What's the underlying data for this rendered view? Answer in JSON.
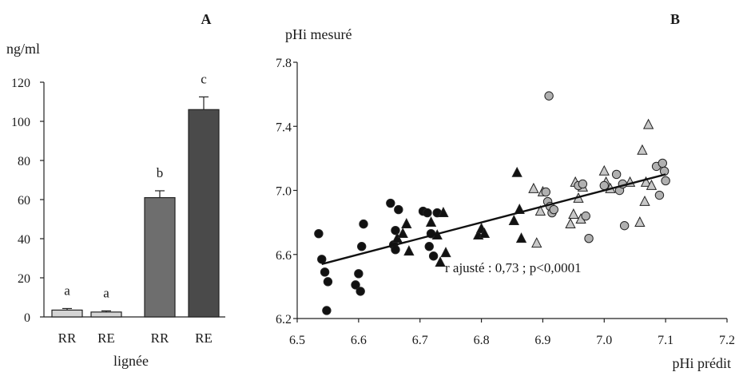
{
  "chart_data": [
    {
      "panel_label": "A",
      "type": "bar",
      "ylabel": "ng/ml",
      "xlabel": "lignée",
      "ylim": [
        0,
        120
      ],
      "yticks": [
        "0",
        "20",
        "40",
        "60",
        "80",
        "100",
        "120"
      ],
      "categories": [
        "RR",
        "RE",
        "RR",
        "RE"
      ],
      "values": [
        3.5,
        2.5,
        61,
        106
      ],
      "errors": [
        0.8,
        0.6,
        3.5,
        6.5
      ],
      "significance": [
        "a",
        "a",
        "b",
        "c"
      ],
      "bar_colors": [
        "#d4d4d4",
        "#d4d4d4",
        "#6e6e6e",
        "#4a4a4a"
      ]
    },
    {
      "panel_label": "B",
      "type": "scatter",
      "ylabel": "pHi mesuré",
      "xlabel": "pHi prédit",
      "xlim": [
        6.5,
        7.2
      ],
      "ylim": [
        6.2,
        7.8
      ],
      "xticks": [
        "6.5",
        "6.6",
        "6.7",
        "6.8",
        "6.9",
        "7.0",
        "7.1",
        "7.2"
      ],
      "yticks": [
        "6.2",
        "6.6",
        "7.0",
        "7.4",
        "7.8"
      ],
      "annotation": "r ajusté : 0,73 ; p<0,0001",
      "fit_line": {
        "x": [
          6.54,
          7.1
        ],
        "y": [
          6.54,
          7.1
        ]
      },
      "series": [
        {
          "marker": "circle",
          "fill": "#111111",
          "points": [
            [
              6.535,
              6.73
            ],
            [
              6.54,
              6.57
            ],
            [
              6.545,
              6.49
            ],
            [
              6.55,
              6.43
            ],
            [
              6.548,
              6.25
            ],
            [
              6.595,
              6.41
            ],
            [
              6.6,
              6.48
            ],
            [
              6.603,
              6.37
            ],
            [
              6.605,
              6.65
            ],
            [
              6.608,
              6.79
            ],
            [
              6.652,
              6.92
            ],
            [
              6.657,
              6.66
            ],
            [
              6.66,
              6.63
            ],
            [
              6.66,
              6.75
            ],
            [
              6.665,
              6.88
            ],
            [
              6.705,
              6.87
            ],
            [
              6.712,
              6.86
            ],
            [
              6.715,
              6.65
            ],
            [
              6.718,
              6.73
            ],
            [
              6.722,
              6.59
            ],
            [
              6.728,
              6.86
            ]
          ]
        },
        {
          "marker": "triangle",
          "fill": "#111111",
          "points": [
            [
              6.663,
              6.7
            ],
            [
              6.672,
              6.73
            ],
            [
              6.678,
              6.79
            ],
            [
              6.682,
              6.62
            ],
            [
              6.718,
              6.8
            ],
            [
              6.728,
              6.72
            ],
            [
              6.733,
              6.55
            ],
            [
              6.738,
              6.86
            ],
            [
              6.742,
              6.61
            ],
            [
              6.795,
              6.72
            ],
            [
              6.8,
              6.76
            ],
            [
              6.805,
              6.73
            ],
            [
              6.853,
              6.81
            ],
            [
              6.858,
              7.11
            ],
            [
              6.862,
              6.88
            ],
            [
              6.865,
              6.7
            ]
          ]
        },
        {
          "marker": "triangle",
          "fill": "#c8c8c8",
          "points": [
            [
              6.885,
              7.01
            ],
            [
              6.89,
              6.67
            ],
            [
              6.896,
              6.87
            ],
            [
              6.9,
              6.99
            ],
            [
              6.945,
              6.79
            ],
            [
              6.95,
              6.85
            ],
            [
              6.953,
              7.05
            ],
            [
              6.958,
              6.95
            ],
            [
              6.962,
              6.82
            ],
            [
              6.965,
              7.02
            ],
            [
              7.0,
              7.12
            ],
            [
              7.003,
              7.05
            ],
            [
              7.01,
              7.01
            ],
            [
              7.042,
              7.05
            ],
            [
              7.058,
              6.8
            ],
            [
              7.062,
              7.25
            ],
            [
              7.066,
              6.93
            ],
            [
              7.068,
              7.05
            ],
            [
              7.072,
              7.41
            ],
            [
              7.077,
              7.03
            ]
          ]
        },
        {
          "marker": "circle",
          "fill": "#b0b0b0",
          "points": [
            [
              6.91,
              7.59
            ],
            [
              6.905,
              6.99
            ],
            [
              6.908,
              6.93
            ],
            [
              6.912,
              6.9
            ],
            [
              6.915,
              6.86
            ],
            [
              6.918,
              6.88
            ],
            [
              6.958,
              7.03
            ],
            [
              6.965,
              7.04
            ],
            [
              6.97,
              6.84
            ],
            [
              6.975,
              6.7
            ],
            [
              7.0,
              7.03
            ],
            [
              7.02,
              7.1
            ],
            [
              7.025,
              7.0
            ],
            [
              7.03,
              7.04
            ],
            [
              7.033,
              6.78
            ],
            [
              7.085,
              7.15
            ],
            [
              7.09,
              6.97
            ],
            [
              7.095,
              7.17
            ],
            [
              7.098,
              7.12
            ],
            [
              7.1,
              7.06
            ]
          ]
        }
      ]
    }
  ]
}
